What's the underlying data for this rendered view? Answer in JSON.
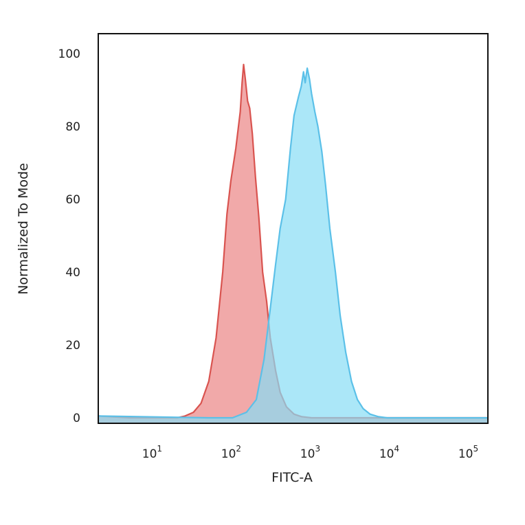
{
  "chart_data": {
    "type": "area",
    "title": "",
    "xlabel": "FITC-A",
    "ylabel": "Normalized To Mode",
    "x_scale": "log",
    "xlim": [
      2,
      170000
    ],
    "ylim": [
      0,
      100
    ],
    "y_ticks": [
      0,
      20,
      40,
      60,
      80,
      100
    ],
    "x_ticks": [
      {
        "base": "10",
        "exp": "1",
        "value": 10
      },
      {
        "base": "10",
        "exp": "2",
        "value": 100
      },
      {
        "base": "10",
        "exp": "3",
        "value": 1000
      },
      {
        "base": "10",
        "exp": "4",
        "value": 10000
      },
      {
        "base": "10",
        "exp": "5",
        "value": 100000
      }
    ],
    "grid": false,
    "legend": "none",
    "series": [
      {
        "color_fill": "#ef9a9a",
        "color_line": "#d9534f",
        "points": [
          [
            2.0,
            0.5
          ],
          [
            5,
            0
          ],
          [
            20,
            0
          ],
          [
            25,
            0.5
          ],
          [
            32,
            1.5
          ],
          [
            40,
            4
          ],
          [
            50,
            10
          ],
          [
            62,
            22
          ],
          [
            75,
            40
          ],
          [
            85,
            56
          ],
          [
            95,
            65
          ],
          [
            110,
            74
          ],
          [
            125,
            84
          ],
          [
            132,
            92
          ],
          [
            138,
            97
          ],
          [
            145,
            93
          ],
          [
            155,
            87
          ],
          [
            165,
            85
          ],
          [
            178,
            78
          ],
          [
            195,
            66
          ],
          [
            215,
            55
          ],
          [
            240,
            40
          ],
          [
            270,
            32
          ],
          [
            300,
            22
          ],
          [
            350,
            13
          ],
          [
            400,
            7
          ],
          [
            480,
            3
          ],
          [
            600,
            1
          ],
          [
            750,
            0.3
          ],
          [
            1000,
            0
          ],
          [
            170000,
            0
          ]
        ]
      },
      {
        "color_fill": "#87ddf5",
        "color_line": "#5bc0e8",
        "points": [
          [
            2.0,
            0.5
          ],
          [
            50,
            0
          ],
          [
            100,
            0
          ],
          [
            150,
            1.5
          ],
          [
            200,
            5
          ],
          [
            250,
            16
          ],
          [
            300,
            30
          ],
          [
            350,
            42
          ],
          [
            400,
            52
          ],
          [
            470,
            60
          ],
          [
            540,
            74
          ],
          [
            600,
            83
          ],
          [
            680,
            88
          ],
          [
            740,
            91
          ],
          [
            790,
            95
          ],
          [
            830,
            92
          ],
          [
            880,
            96
          ],
          [
            940,
            93
          ],
          [
            1000,
            89
          ],
          [
            1100,
            84
          ],
          [
            1200,
            80
          ],
          [
            1350,
            73
          ],
          [
            1500,
            64
          ],
          [
            1700,
            52
          ],
          [
            2000,
            40
          ],
          [
            2300,
            28
          ],
          [
            2700,
            18
          ],
          [
            3200,
            10
          ],
          [
            3800,
            5
          ],
          [
            4500,
            2.5
          ],
          [
            5500,
            1
          ],
          [
            7000,
            0.3
          ],
          [
            9000,
            0
          ],
          [
            170000,
            0
          ]
        ]
      }
    ]
  }
}
